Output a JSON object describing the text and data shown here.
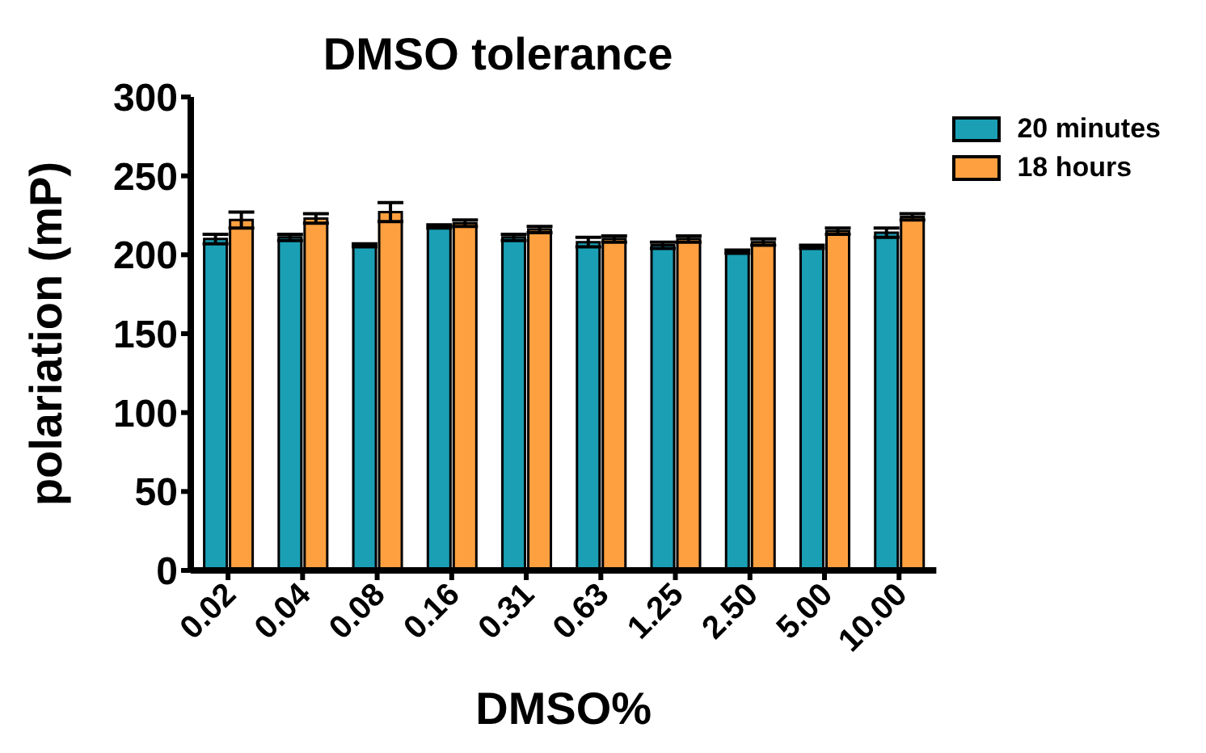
{
  "chart_data": {
    "type": "bar",
    "title": "DMSO tolerance",
    "xlabel": "DMSO%",
    "ylabel": "polariation (mP)",
    "categories": [
      "0.02",
      "0.04",
      "0.08",
      "0.16",
      "0.31",
      "0.63",
      "1.25",
      "2.50",
      "5.00",
      "10.00"
    ],
    "series": [
      {
        "name": "20 minutes",
        "color": "#1a9fb5",
        "values": [
          210,
          211,
          206,
          218,
          211,
          208,
          206,
          202,
          205,
          214
        ],
        "errors": [
          3,
          2,
          1,
          1,
          2,
          3,
          2,
          1,
          1,
          3
        ]
      },
      {
        "name": "18 hours",
        "color": "#ffa040",
        "values": [
          222,
          223,
          227,
          220,
          216,
          210,
          210,
          208,
          215,
          224
        ],
        "errors": [
          5,
          3,
          6,
          2,
          2,
          2,
          2,
          2,
          2,
          2
        ]
      }
    ],
    "ylim": [
      0,
      300
    ],
    "yticks": [
      0,
      50,
      100,
      150,
      200,
      250,
      300
    ],
    "grid": false,
    "legend": "top right"
  }
}
